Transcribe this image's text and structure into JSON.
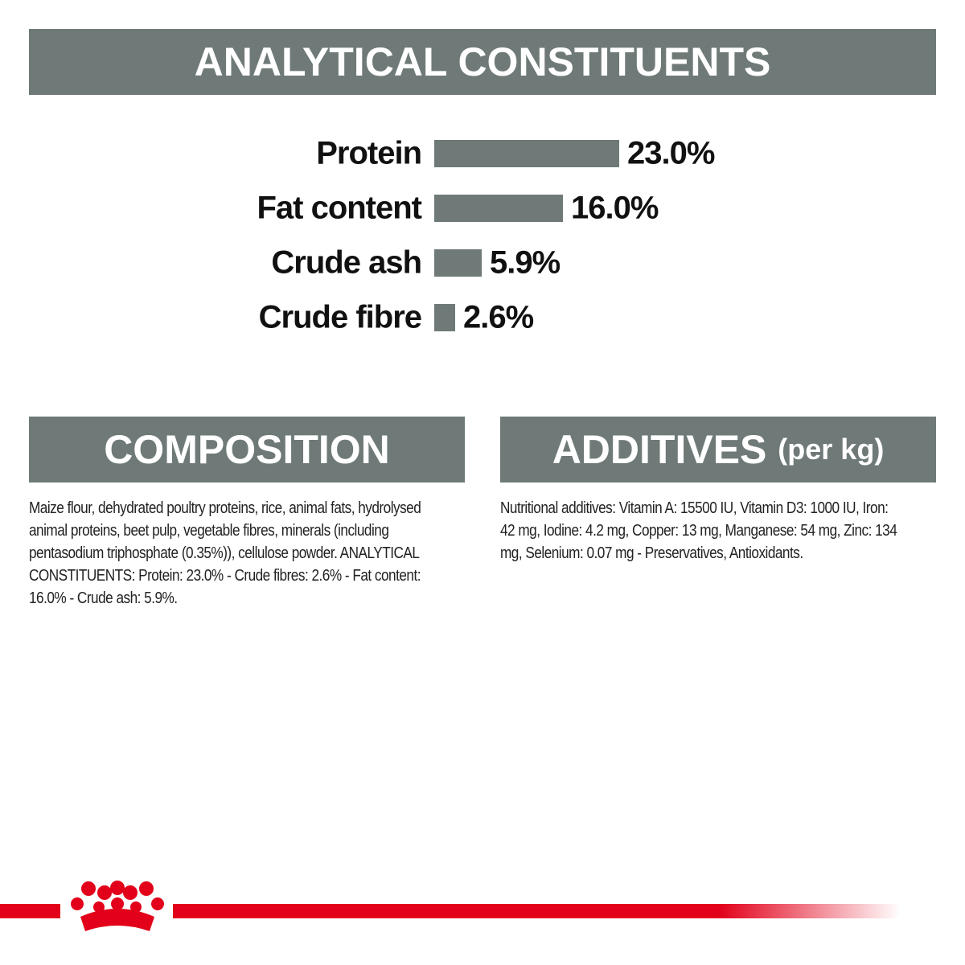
{
  "header": {
    "title": "ANALYTICAL CONSTITUENTS"
  },
  "chart_data": {
    "type": "bar",
    "orientation": "horizontal",
    "categories": [
      "Protein",
      "Fat content",
      "Crude ash",
      "Crude fibre"
    ],
    "values": [
      23.0,
      16.0,
      5.9,
      2.6
    ],
    "value_labels": [
      "23.0%",
      "16.0%",
      "5.9%",
      "2.6%"
    ],
    "color": "#6f7a78"
  },
  "composition": {
    "title": "COMPOSITION",
    "text": "Maize flour, dehydrated poultry proteins, rice, animal fats, hydrolysed animal proteins, beet pulp, vegetable fibres, minerals (including pentasodium triphosphate (0.35%)), cellulose powder. ANALYTICAL CONSTITUENTS: Protein: 23.0% - Crude fibres: 2.6% - Fat content: 16.0% - Crude ash: 5.9%."
  },
  "additives": {
    "title": "ADDITIVES",
    "subtitle": "(per kg)",
    "text": "Nutritional additives: Vitamin A: 15500 IU, Vitamin D3: 1000 IU, Iron: 42 mg, Iodine: 4.2 mg, Copper: 13 mg, Manganese: 54 mg, Zinc: 134 mg, Selenium: 0.07 mg - Preservatives, Antioxidants."
  }
}
